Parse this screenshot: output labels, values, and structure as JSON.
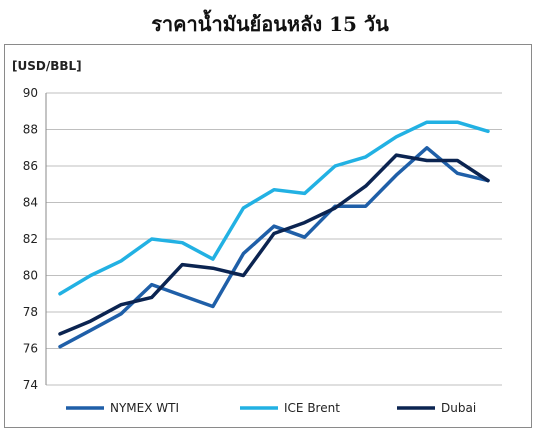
{
  "chart_data": {
    "type": "line",
    "title": "ราคาน้ำมันย้อนหลัง 15 วัน",
    "ylabel": "[USD/BBL]",
    "xlabel": "",
    "ylim": [
      74,
      90
    ],
    "yticks": [
      "74",
      "76",
      "78",
      "80",
      "82",
      "84",
      "86",
      "88",
      "90"
    ],
    "grid": true,
    "legend_position": "bottom",
    "x": [
      1,
      2,
      3,
      4,
      5,
      6,
      7,
      8,
      9,
      10,
      11,
      12,
      13,
      14,
      15
    ],
    "series": [
      {
        "name": "NYMEX WTI",
        "color": "#1f5fa8",
        "values": [
          76.1,
          77.0,
          77.9,
          79.5,
          78.9,
          78.3,
          81.2,
          82.7,
          82.1,
          83.8,
          83.8,
          85.5,
          87.0,
          85.6,
          85.2
        ]
      },
      {
        "name": "ICE Brent",
        "color": "#22b1e3",
        "values": [
          79.0,
          80.0,
          80.8,
          82.0,
          81.8,
          80.9,
          83.7,
          84.7,
          84.5,
          86.0,
          86.5,
          87.6,
          88.4,
          88.4,
          87.9
        ]
      },
      {
        "name": "Dubai",
        "color": "#0b2451",
        "values": [
          76.8,
          77.5,
          78.4,
          78.8,
          80.6,
          80.4,
          80.0,
          82.3,
          82.9,
          83.7,
          84.9,
          86.6,
          86.3,
          86.3,
          85.2
        ]
      }
    ]
  }
}
